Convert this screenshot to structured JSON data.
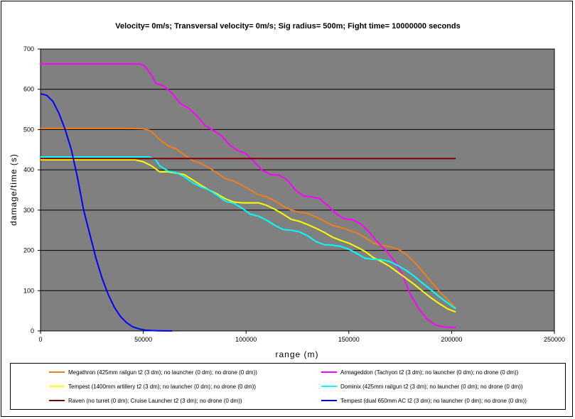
{
  "chart_data": {
    "type": "line",
    "title": "Velocity= 0m/s; Transversal velocity= 0m/s; Sig radius= 500m; Fight time= 10000000 seconds",
    "xlabel": "range (m)",
    "ylabel": "damage/time (s)",
    "xlim": [
      0,
      250000
    ],
    "ylim": [
      0,
      700
    ],
    "xticks": [
      0,
      50000,
      100000,
      150000,
      200000,
      250000
    ],
    "yticks": [
      0,
      100,
      200,
      300,
      400,
      500,
      600,
      700
    ],
    "grid": "horizontal",
    "plot_background": "#808080",
    "legend_position": "bottom",
    "series": [
      {
        "name": "Megathron (425mm railgun t2 (3 dm); no launcher (0 dm); no drone (0 dm))",
        "color": "#ee7f1f",
        "x": [
          0,
          20000,
          40000,
          50000,
          53000,
          55000,
          58000,
          62000,
          66000,
          70000,
          74000,
          78000,
          82000,
          86000,
          90000,
          94000,
          98000,
          102000,
          106000,
          110000,
          114000,
          118000,
          122000,
          126000,
          130000,
          134000,
          138000,
          142000,
          146000,
          150000,
          154000,
          158000,
          162000,
          166000,
          170000,
          174000,
          178000,
          182000,
          186000,
          190000,
          194000,
          198000,
          202000
        ],
        "values": [
          503,
          503,
          503,
          502,
          498,
          490,
          475,
          460,
          452,
          437,
          423,
          416,
          405,
          392,
          378,
          372,
          362,
          350,
          338,
          333,
          323,
          310,
          300,
          295,
          292,
          283,
          273,
          262,
          257,
          250,
          243,
          232,
          218,
          212,
          209,
          203,
          190,
          170,
          147,
          122,
          98,
          78,
          57
        ]
      },
      {
        "name": "Armageddon (Tachyon t2 (3 dm); no launcher (0 dm); no drone (0 dm))",
        "color": "#ff00ff",
        "x": [
          0,
          20000,
          40000,
          48000,
          50000,
          52000,
          54000,
          56000,
          60000,
          64000,
          68000,
          72000,
          76000,
          80000,
          84000,
          88000,
          92000,
          96000,
          100000,
          104000,
          108000,
          112000,
          116000,
          120000,
          124000,
          128000,
          132000,
          136000,
          140000,
          144000,
          148000,
          152000,
          156000,
          160000,
          164000,
          168000,
          172000,
          176000,
          180000,
          184000,
          188000,
          192000,
          196000,
          202000
        ],
        "values": [
          663,
          663,
          663,
          663,
          660,
          650,
          635,
          615,
          608,
          590,
          565,
          553,
          535,
          510,
          498,
          485,
          462,
          448,
          440,
          420,
          398,
          388,
          387,
          375,
          350,
          335,
          333,
          328,
          310,
          290,
          278,
          276,
          265,
          245,
          220,
          200,
          175,
          140,
          90,
          55,
          30,
          15,
          10,
          8
        ]
      },
      {
        "name": "Tempest (1400mm artillery t2 (3 dm); no launcher (0 dm); no drone (0 dm))",
        "color": "#ffff00",
        "x": [
          0,
          20000,
          40000,
          46000,
          50000,
          54000,
          58000,
          62000,
          66000,
          70000,
          74000,
          78000,
          82000,
          86000,
          90000,
          94000,
          98000,
          102000,
          106000,
          110000,
          114000,
          118000,
          122000,
          126000,
          130000,
          134000,
          138000,
          142000,
          146000,
          150000,
          154000,
          158000,
          162000,
          166000,
          170000,
          174000,
          178000,
          182000,
          186000,
          190000,
          194000,
          198000,
          202000
        ],
        "values": [
          425,
          425,
          425,
          425,
          420,
          410,
          395,
          395,
          392,
          388,
          375,
          362,
          350,
          340,
          328,
          320,
          318,
          318,
          318,
          312,
          302,
          290,
          277,
          272,
          264,
          255,
          245,
          233,
          225,
          218,
          208,
          197,
          182,
          172,
          160,
          145,
          130,
          115,
          98,
          82,
          68,
          55,
          47
        ]
      },
      {
        "name": "Dominix (425mm railgun t2 (3 dm); no launcher (0 dm); no drone (0 dm))",
        "color": "#00ffff",
        "x": [
          0,
          20000,
          40000,
          50000,
          53000,
          56000,
          58000,
          62000,
          66000,
          70000,
          74000,
          78000,
          82000,
          86000,
          90000,
          94000,
          98000,
          102000,
          106000,
          110000,
          114000,
          118000,
          122000,
          126000,
          130000,
          134000,
          138000,
          142000,
          146000,
          150000,
          154000,
          158000,
          162000,
          166000,
          170000,
          174000,
          178000,
          182000,
          186000,
          190000,
          194000,
          198000,
          202000
        ],
        "values": [
          432,
          432,
          432,
          432,
          432,
          425,
          410,
          397,
          393,
          383,
          368,
          358,
          350,
          337,
          322,
          317,
          305,
          290,
          285,
          275,
          262,
          252,
          250,
          246,
          236,
          222,
          214,
          213,
          210,
          203,
          192,
          180,
          178,
          177,
          172,
          162,
          150,
          135,
          118,
          102,
          85,
          70,
          55
        ]
      },
      {
        "name": "Raven (no turret (0 dm); Cruise Launcher t2 (3 dm); no drone (0 dm))",
        "color": "#800000",
        "x": [
          0,
          202000
        ],
        "values": [
          428,
          428
        ]
      },
      {
        "name": "Tempest (dual 650mm AC t2 (3 dm); no launcher (0 dm); no drone (0 dm))",
        "color": "#0000ff",
        "x": [
          0,
          3000,
          6000,
          9000,
          12000,
          15000,
          18000,
          21000,
          24000,
          27000,
          30000,
          33000,
          36000,
          39000,
          42000,
          45000,
          48000,
          51000,
          54000,
          57000,
          60000,
          64000
        ],
        "values": [
          589,
          585,
          570,
          540,
          500,
          450,
          380,
          300,
          240,
          180,
          130,
          90,
          58,
          35,
          20,
          10,
          5,
          2,
          1,
          0.5,
          0.2,
          0
        ]
      }
    ]
  }
}
